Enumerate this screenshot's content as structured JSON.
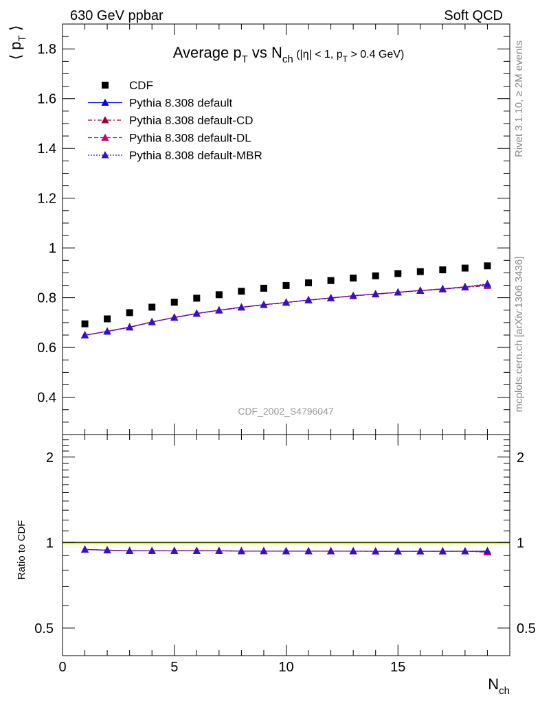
{
  "header": {
    "left": "630 GeV ppbar",
    "right": "Soft QCD"
  },
  "side_labels": {
    "rivet": "Rivet 3.1.10, ≥ 2M events",
    "mcplots": "mcplots.cern.ch [arXiv:1306.3436]"
  },
  "chart_data": {
    "type": "scatter",
    "title": "Average p_T vs N_ch (|η| < 1, p_T > 0.4 GeV)",
    "watermark": "CDF_2002_S4796047",
    "xlabel": "N_ch",
    "ylabel": "⟨ p_T ⟩",
    "ratio_ylabel": "Ratio to CDF",
    "xlim": [
      0,
      20
    ],
    "ylim": [
      0.25,
      1.9
    ],
    "ratio_ylim": [
      0.4,
      2.4
    ],
    "x_ticks": [
      "0",
      "5",
      "10",
      "15"
    ],
    "y_ticks": [
      "0.4",
      "0.6",
      "0.8",
      "1",
      "1.2",
      "1.4",
      "1.6",
      "1.8"
    ],
    "ratio_ticks": [
      "0.5",
      "1",
      "2"
    ],
    "legend_position": "top-left",
    "x": [
      1,
      2,
      3,
      4,
      5,
      6,
      7,
      8,
      9,
      10,
      11,
      12,
      13,
      14,
      15,
      16,
      17,
      18,
      19
    ],
    "series": [
      {
        "name": "CDF",
        "color": "#000000",
        "marker": "square",
        "line": "none",
        "values": [
          0.695,
          0.715,
          0.74,
          0.762,
          0.782,
          0.798,
          0.812,
          0.826,
          0.838,
          0.849,
          0.86,
          0.869,
          0.879,
          0.888,
          0.897,
          0.905,
          0.912,
          0.919,
          0.928
        ]
      },
      {
        "name": "Pythia 8.308 default",
        "color": "#0000ff",
        "marker": "triangle",
        "line": "solid",
        "values": [
          0.649,
          0.665,
          0.682,
          0.703,
          0.72,
          0.737,
          0.75,
          0.762,
          0.772,
          0.781,
          0.791,
          0.799,
          0.808,
          0.815,
          0.822,
          0.829,
          0.835,
          0.843,
          0.853
        ]
      },
      {
        "name": "Pythia 8.308 default-CD",
        "color": "#990033",
        "marker": "triangle",
        "line": "dashdot",
        "values": [
          0.65,
          0.664,
          0.681,
          0.702,
          0.721,
          0.736,
          0.749,
          0.761,
          0.771,
          0.78,
          0.79,
          0.798,
          0.807,
          0.814,
          0.821,
          0.828,
          0.834,
          0.842,
          0.848
        ]
      },
      {
        "name": "Pythia 8.308 default-DL",
        "color": "#cc0066",
        "marker": "triangle",
        "line": "dashed",
        "values": [
          0.65,
          0.665,
          0.682,
          0.703,
          0.721,
          0.737,
          0.75,
          0.762,
          0.772,
          0.781,
          0.791,
          0.799,
          0.807,
          0.815,
          0.822,
          0.829,
          0.836,
          0.844,
          0.852
        ]
      },
      {
        "name": "Pythia 8.308 default-MBR",
        "color": "#3311cc",
        "marker": "triangle",
        "line": "dotted",
        "values": [
          0.649,
          0.664,
          0.681,
          0.702,
          0.72,
          0.736,
          0.749,
          0.761,
          0.772,
          0.781,
          0.79,
          0.799,
          0.808,
          0.815,
          0.822,
          0.829,
          0.835,
          0.843,
          0.856
        ]
      }
    ],
    "ratio_series": [
      {
        "name": "Pythia 8.308 default",
        "values": [
          0.945,
          0.94,
          0.935,
          0.935,
          0.935,
          0.935,
          0.935,
          0.934,
          0.934,
          0.933,
          0.933,
          0.933,
          0.933,
          0.932,
          0.932,
          0.932,
          0.932,
          0.932,
          0.932
        ]
      },
      {
        "name": "Pythia 8.308 default-CD",
        "values": [
          0.946,
          0.941,
          0.936,
          0.935,
          0.936,
          0.936,
          0.935,
          0.934,
          0.934,
          0.933,
          0.933,
          0.933,
          0.932,
          0.931,
          0.931,
          0.931,
          0.931,
          0.932,
          0.925
        ]
      },
      {
        "name": "Pythia 8.308 default-DL",
        "values": [
          0.946,
          0.941,
          0.935,
          0.935,
          0.936,
          0.935,
          0.935,
          0.934,
          0.934,
          0.933,
          0.934,
          0.933,
          0.933,
          0.932,
          0.932,
          0.932,
          0.932,
          0.933,
          0.926
        ]
      },
      {
        "name": "Pythia 8.308 default-MBR",
        "values": [
          0.945,
          0.94,
          0.935,
          0.935,
          0.935,
          0.935,
          0.935,
          0.933,
          0.934,
          0.933,
          0.933,
          0.933,
          0.933,
          0.932,
          0.932,
          0.932,
          0.932,
          0.932,
          0.935
        ]
      }
    ],
    "reference_band": {
      "color": "#ccff00",
      "line_color": "#000000",
      "value": 1.0
    }
  }
}
